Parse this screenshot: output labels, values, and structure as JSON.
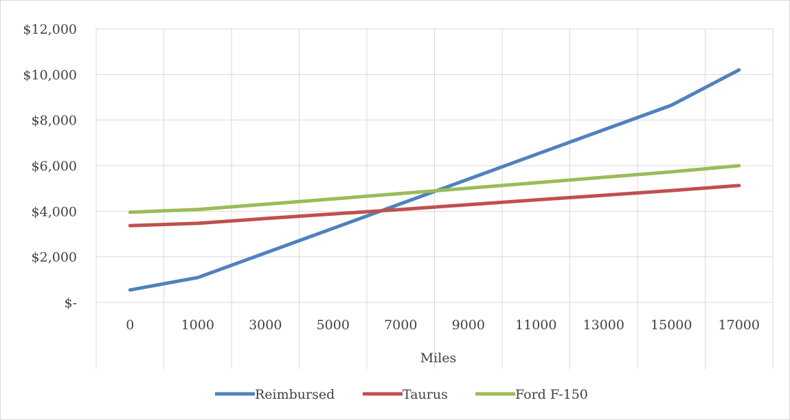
{
  "chart_data": {
    "type": "line",
    "title": "",
    "xlabel": "Miles",
    "ylabel": "",
    "categories": [
      "0",
      "1000",
      "3000",
      "5000",
      "7000",
      "9000",
      "11000",
      "13000",
      "15000",
      "17000"
    ],
    "x": [
      0,
      1000,
      3000,
      5000,
      7000,
      9000,
      11000,
      13000,
      15000,
      17000
    ],
    "y_ticks": [
      "$-",
      "$2,000",
      "$4,000",
      "$6,000",
      "$8,000",
      "$10,000",
      "$12,000"
    ],
    "ylim": [
      0,
      12000
    ],
    "grid": true,
    "legend_position": "bottom",
    "series": [
      {
        "name": "Reimbursed",
        "color": "#4f81bd",
        "values": [
          550,
          1090,
          2170,
          3250,
          4330,
          5410,
          6490,
          7570,
          8650,
          10200
        ]
      },
      {
        "name": "Taurus",
        "color": "#c0504d",
        "values": [
          3370,
          3470,
          3680,
          3880,
          4080,
          4290,
          4500,
          4700,
          4910,
          5130
        ]
      },
      {
        "name": "Ford F-150",
        "color": "#9bbb59",
        "values": [
          3960,
          4080,
          4310,
          4540,
          4780,
          5010,
          5250,
          5490,
          5730,
          6000
        ]
      }
    ]
  }
}
